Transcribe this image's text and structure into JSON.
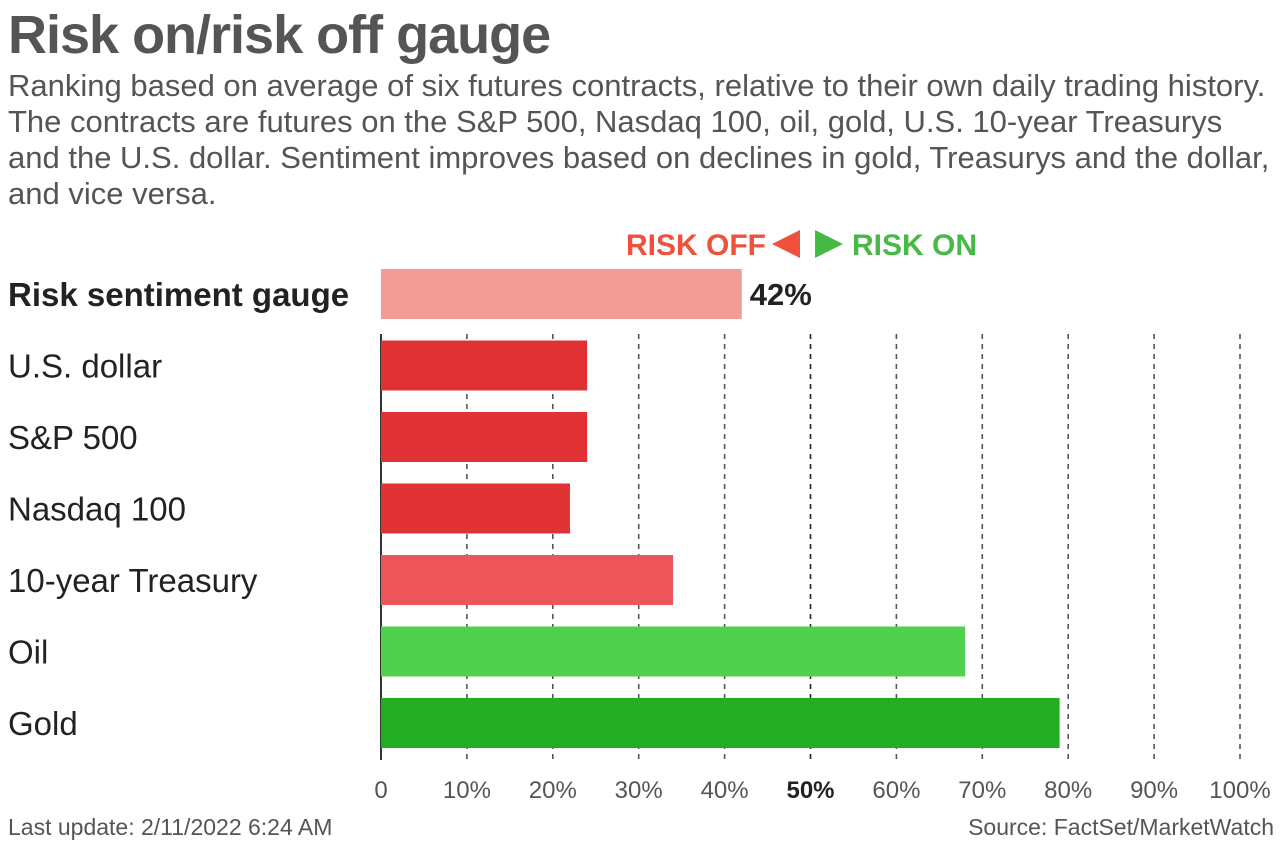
{
  "title": "Risk on/risk off gauge",
  "subtitle": "Ranking based on average of six futures contracts, relative to their own daily trading history. The contracts are futures on the S&P 500, Nasdaq 100, oil, gold, U.S. 10-year Treasurys and the U.S. dollar. Sentiment improves based on declines in gold, Treasurys and the dollar, and vice versa.",
  "legend": {
    "risk_off": "RISK OFF",
    "risk_on": "RISK ON",
    "risk_off_color": "#f0503c",
    "risk_on_color": "#46b946"
  },
  "chart_data": {
    "type": "bar",
    "orientation": "horizontal",
    "title": "Risk on/risk off gauge",
    "xlabel": "",
    "ylabel": "",
    "xlim": [
      0,
      100
    ],
    "grid": true,
    "categories": [
      "Risk sentiment gauge",
      "U.S. dollar",
      "S&P 500",
      "Nasdaq 100",
      "10-year Treasury",
      "Oil",
      "Gold"
    ],
    "values": [
      42,
      24,
      24,
      22,
      34,
      68,
      79
    ],
    "colors": [
      "#f19c95",
      "#e03235",
      "#e03235",
      "#e03235",
      "#ec565a",
      "#4fd14f",
      "#22ad22"
    ],
    "bold_categories": [
      "Risk sentiment gauge"
    ],
    "data_labels": [
      {
        "category": "Risk sentiment gauge",
        "text": "42%"
      }
    ],
    "x_ticks": [
      {
        "value": 0,
        "label": "0"
      },
      {
        "value": 10,
        "label": "10%"
      },
      {
        "value": 20,
        "label": "20%"
      },
      {
        "value": 30,
        "label": "30%"
      },
      {
        "value": 40,
        "label": "40%"
      },
      {
        "value": 50,
        "label": "50%"
      },
      {
        "value": 60,
        "label": "60%"
      },
      {
        "value": 70,
        "label": "70%"
      },
      {
        "value": 80,
        "label": "80%"
      },
      {
        "value": 90,
        "label": "90%"
      },
      {
        "value": 100,
        "label": "100%"
      }
    ],
    "highlight_tick": 50
  },
  "footer": {
    "last_update": "Last update: 2/11/2022 6:24 AM",
    "source": "Source: FactSet/MarketWatch"
  }
}
